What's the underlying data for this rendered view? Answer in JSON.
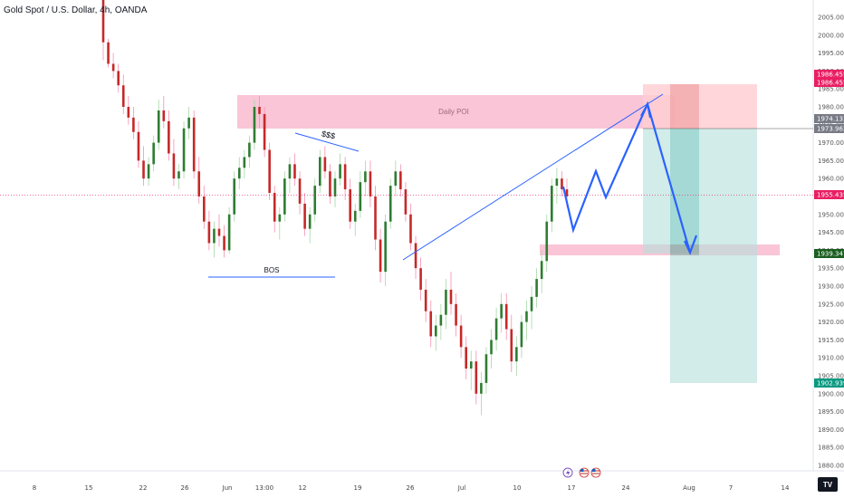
{
  "window": {
    "symbol_title": "Gold Spot / U.S. Dollar, 4h, OANDA"
  },
  "chart_data": {
    "type": "candlestick",
    "title": "Gold Spot / U.S. Dollar, 4h, OANDA",
    "ylim": [
      1875,
      2012
    ],
    "y_ticks": [
      1880,
      1885,
      1890,
      1895,
      1900,
      1905,
      1910,
      1915,
      1920,
      1925,
      1930,
      1935,
      1940,
      1945,
      1950,
      1955,
      1960,
      1965,
      1970,
      1975,
      1980,
      1985,
      1990,
      1995,
      2000,
      2005
    ],
    "y_tick_labels": [
      "1880.000",
      "1885.000",
      "1890.000",
      "1895.000",
      "1900.000",
      "1905.000",
      "1910.000",
      "1915.000",
      "1920.000",
      "1925.000",
      "1930.000",
      "1935.000",
      "1940.000",
      "1945.000",
      "1950.000",
      "1955.000",
      "1960.000",
      "1965.000",
      "1970.000",
      "1975.000",
      "1980.000",
      "1985.000",
      "1990.000",
      "1995.000",
      "2000.000",
      "2005.000"
    ],
    "x_ticks": [
      "8",
      "15",
      "22",
      "26",
      "Jun",
      "13:00",
      "12",
      "19",
      "26",
      "Jul",
      "10",
      "17",
      "24",
      "Aug",
      "7",
      "14"
    ],
    "grid": false,
    "current_price": "1955.435",
    "price_badges": [
      {
        "value": "1986.455",
        "color": "#e91e63"
      },
      {
        "value": "1986.455",
        "color": "#e91e63"
      },
      {
        "value": "1974.133",
        "color": "#787b86"
      },
      {
        "value": "1973.962",
        "color": "#787b86"
      },
      {
        "value": "1955.435",
        "color": "#e91e63"
      },
      {
        "value": "1939.347",
        "color": "#1b5e20"
      },
      {
        "value": "1902.939",
        "color": "#089981"
      }
    ],
    "bull_color": "#26a69a",
    "bear_color": "#e91e63",
    "candle_color_up": "#2e7d32",
    "candle_color_down": "#c62828",
    "ohlc": [
      [
        2012,
        2012,
        1993,
        1998
      ],
      [
        1998,
        1999,
        1991,
        1992
      ],
      [
        1992,
        1995,
        1988,
        1990
      ],
      [
        1990,
        1992,
        1984,
        1986
      ],
      [
        1986,
        1989,
        1978,
        1980
      ],
      [
        1980,
        1983,
        1975,
        1977
      ],
      [
        1977,
        1980,
        1971,
        1973
      ],
      [
        1973,
        1976,
        1963,
        1965
      ],
      [
        1965,
        1969,
        1958,
        1960
      ],
      [
        1960,
        1966,
        1958,
        1964
      ],
      [
        1964,
        1972,
        1962,
        1970
      ],
      [
        1970,
        1982,
        1968,
        1979
      ],
      [
        1979,
        1983,
        1974,
        1976
      ],
      [
        1976,
        1979,
        1965,
        1967
      ],
      [
        1967,
        1971,
        1958,
        1960
      ],
      [
        1960,
        1964,
        1957,
        1962
      ],
      [
        1962,
        1976,
        1960,
        1974
      ],
      [
        1974,
        1980,
        1971,
        1977
      ],
      [
        1977,
        1979,
        1960,
        1962
      ],
      [
        1962,
        1966,
        1953,
        1955
      ],
      [
        1955,
        1958,
        1946,
        1948
      ],
      [
        1948,
        1951,
        1940,
        1942
      ],
      [
        1942,
        1948,
        1938,
        1946
      ],
      [
        1946,
        1950,
        1941,
        1944
      ],
      [
        1944,
        1947,
        1938,
        1940
      ],
      [
        1940,
        1952,
        1939,
        1950
      ],
      [
        1950,
        1962,
        1948,
        1960
      ],
      [
        1960,
        1966,
        1957,
        1963
      ],
      [
        1963,
        1968,
        1960,
        1966
      ],
      [
        1966,
        1972,
        1963,
        1970
      ],
      [
        1970,
        1982,
        1968,
        1980
      ],
      [
        1980,
        1983,
        1974,
        1978
      ],
      [
        1978,
        1980,
        1966,
        1968
      ],
      [
        1968,
        1970,
        1954,
        1956
      ],
      [
        1956,
        1958,
        1945,
        1948
      ],
      [
        1948,
        1952,
        1943,
        1950
      ],
      [
        1950,
        1962,
        1948,
        1960
      ],
      [
        1960,
        1966,
        1956,
        1964
      ],
      [
        1964,
        1967,
        1958,
        1960
      ],
      [
        1960,
        1962,
        1950,
        1953
      ],
      [
        1953,
        1956,
        1944,
        1946
      ],
      [
        1946,
        1952,
        1942,
        1950
      ],
      [
        1950,
        1960,
        1948,
        1958
      ],
      [
        1958,
        1968,
        1956,
        1966
      ],
      [
        1966,
        1969,
        1960,
        1962
      ],
      [
        1962,
        1964,
        1953,
        1955
      ],
      [
        1955,
        1962,
        1952,
        1960
      ],
      [
        1960,
        1967,
        1958,
        1964
      ],
      [
        1964,
        1966,
        1954,
        1957
      ],
      [
        1957,
        1960,
        1946,
        1948
      ],
      [
        1948,
        1953,
        1944,
        1951
      ],
      [
        1951,
        1962,
        1949,
        1959
      ],
      [
        1959,
        1965,
        1955,
        1962
      ],
      [
        1962,
        1965,
        1952,
        1955
      ],
      [
        1955,
        1958,
        1940,
        1943
      ],
      [
        1943,
        1946,
        1931,
        1934
      ],
      [
        1934,
        1950,
        1930,
        1948
      ],
      [
        1948,
        1960,
        1946,
        1958
      ],
      [
        1958,
        1965,
        1955,
        1962
      ],
      [
        1962,
        1964,
        1955,
        1957
      ],
      [
        1957,
        1959,
        1948,
        1950
      ],
      [
        1950,
        1953,
        1940,
        1942
      ],
      [
        1942,
        1944,
        1932,
        1935
      ],
      [
        1935,
        1938,
        1926,
        1929
      ],
      [
        1929,
        1932,
        1920,
        1923
      ],
      [
        1923,
        1926,
        1913,
        1916
      ],
      [
        1916,
        1922,
        1912,
        1919
      ],
      [
        1919,
        1925,
        1915,
        1922
      ],
      [
        1922,
        1932,
        1918,
        1929
      ],
      [
        1929,
        1934,
        1922,
        1925
      ],
      [
        1925,
        1928,
        1916,
        1919
      ],
      [
        1919,
        1922,
        1910,
        1913
      ],
      [
        1913,
        1916,
        1904,
        1907
      ],
      [
        1907,
        1912,
        1901,
        1909
      ],
      [
        1909,
        1912,
        1897,
        1900
      ],
      [
        1900,
        1906,
        1894,
        1903
      ],
      [
        1903,
        1913,
        1900,
        1911
      ],
      [
        1911,
        1918,
        1907,
        1915
      ],
      [
        1915,
        1924,
        1912,
        1921
      ],
      [
        1921,
        1928,
        1917,
        1925
      ],
      [
        1925,
        1928,
        1915,
        1918
      ],
      [
        1918,
        1922,
        1906,
        1909
      ],
      [
        1909,
        1916,
        1905,
        1913
      ],
      [
        1913,
        1922,
        1910,
        1920
      ],
      [
        1920,
        1926,
        1915,
        1923
      ],
      [
        1923,
        1930,
        1918,
        1927
      ],
      [
        1927,
        1935,
        1924,
        1932
      ],
      [
        1932,
        1940,
        1928,
        1937
      ],
      [
        1937,
        1950,
        1934,
        1948
      ],
      [
        1948,
        1960,
        1945,
        1958
      ],
      [
        1958,
        1963,
        1953,
        1960
      ],
      [
        1960,
        1962,
        1955,
        1957
      ],
      [
        1957,
        1960,
        1952,
        1955
      ]
    ]
  },
  "annotations": {
    "daily_poi": "Daily POI",
    "bos": "BOS",
    "liquidity": "$$$"
  },
  "zones": {
    "poi_color": "#f8bbd0",
    "target_zone_color": "#b2dfdb",
    "stop_zone_color": "#ffcdd2",
    "projection_color": "#2962ff"
  },
  "icons": {
    "flash": "lightning-icon",
    "flag_us_1": "us-flag-icon",
    "flag_us_2": "us-flag-icon"
  }
}
